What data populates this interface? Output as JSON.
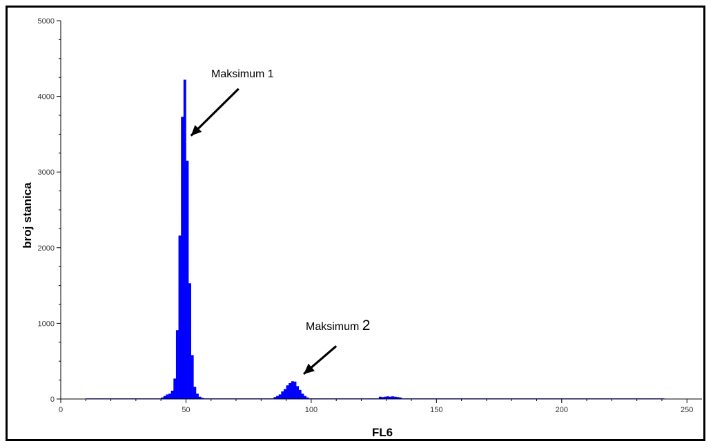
{
  "chart_data": {
    "type": "bar",
    "xlabel": "FL6",
    "ylabel": "broj stanica",
    "xlim": [
      0,
      256
    ],
    "ylim": [
      0,
      5000
    ],
    "x_ticks": [
      0,
      50,
      100,
      150,
      200,
      250
    ],
    "y_ticks": [
      0,
      1000,
      2000,
      3000,
      4000,
      5000
    ],
    "grid": false,
    "bar_color": "#0000ff",
    "bins": [
      {
        "x": 40,
        "y": 20
      },
      {
        "x": 41,
        "y": 40
      },
      {
        "x": 42,
        "y": 60
      },
      {
        "x": 43,
        "y": 70
      },
      {
        "x": 44,
        "y": 110
      },
      {
        "x": 45,
        "y": 270
      },
      {
        "x": 46,
        "y": 910
      },
      {
        "x": 47,
        "y": 2160
      },
      {
        "x": 48,
        "y": 3730
      },
      {
        "x": 49,
        "y": 4220
      },
      {
        "x": 50,
        "y": 3150
      },
      {
        "x": 51,
        "y": 1530
      },
      {
        "x": 52,
        "y": 580
      },
      {
        "x": 53,
        "y": 160
      },
      {
        "x": 54,
        "y": 70
      },
      {
        "x": 55,
        "y": 30
      },
      {
        "x": 56,
        "y": 15
      },
      {
        "x": 85,
        "y": 25
      },
      {
        "x": 86,
        "y": 40
      },
      {
        "x": 87,
        "y": 60
      },
      {
        "x": 88,
        "y": 100
      },
      {
        "x": 89,
        "y": 130
      },
      {
        "x": 90,
        "y": 180
      },
      {
        "x": 91,
        "y": 210
      },
      {
        "x": 92,
        "y": 235
      },
      {
        "x": 93,
        "y": 230
      },
      {
        "x": 94,
        "y": 170
      },
      {
        "x": 95,
        "y": 120
      },
      {
        "x": 96,
        "y": 70
      },
      {
        "x": 97,
        "y": 40
      },
      {
        "x": 98,
        "y": 20
      },
      {
        "x": 127,
        "y": 30
      },
      {
        "x": 128,
        "y": 25
      },
      {
        "x": 129,
        "y": 30
      },
      {
        "x": 130,
        "y": 35
      },
      {
        "x": 131,
        "y": 30
      },
      {
        "x": 132,
        "y": 35
      },
      {
        "x": 133,
        "y": 30
      },
      {
        "x": 134,
        "y": 25
      },
      {
        "x": 135,
        "y": 20
      }
    ],
    "baseline": {
      "from": 10,
      "to": 241,
      "y": 8
    },
    "annotations": [
      {
        "text": "Maksimum",
        "number": "1",
        "tip_x": 52,
        "tip_y": 3480,
        "tail_x": 71,
        "tail_y": 4100
      },
      {
        "text": "Maksimum",
        "number": "2",
        "tip_x": 97,
        "tip_y": 330,
        "tail_x": 110,
        "tail_y": 700
      }
    ]
  }
}
